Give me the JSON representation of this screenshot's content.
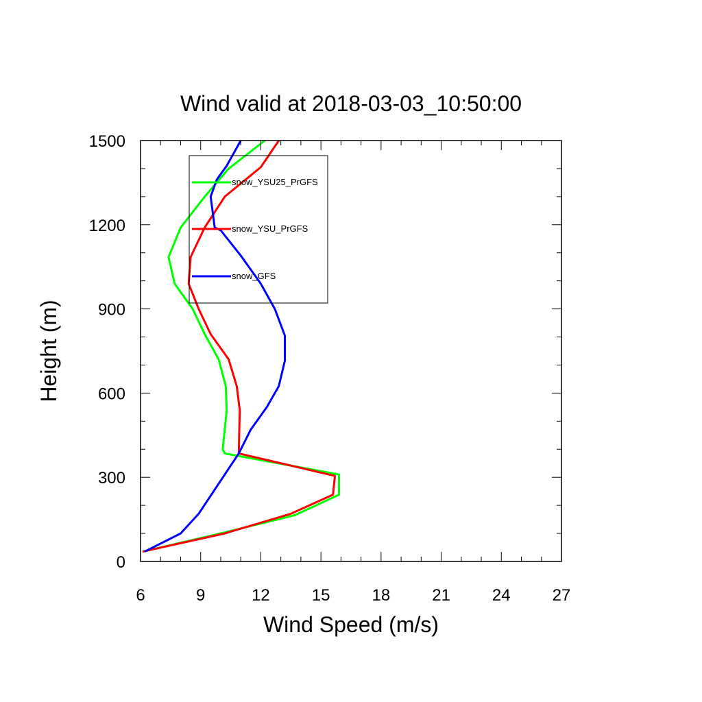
{
  "chart_data": {
    "type": "line",
    "title": "Wind valid at 2018-03-03_10:50:00",
    "xlabel": "Wind Speed (m/s)",
    "ylabel": "Height (m)",
    "xlim": [
      6,
      27
    ],
    "ylim": [
      0,
      1500
    ],
    "xticks": [
      6,
      9,
      12,
      15,
      18,
      21,
      24,
      27
    ],
    "xticks_text": [
      "6",
      "9",
      "12",
      "15",
      "18",
      "21",
      "24",
      "27"
    ],
    "yticks": [
      0,
      300,
      600,
      900,
      1200,
      1500
    ],
    "yticks_text": [
      "0",
      "300",
      "600",
      "900",
      "1200",
      "1500"
    ],
    "grid": false,
    "legend_position": "top-left (inside plot)",
    "series": [
      {
        "name": "snow_YSU25_PrGFS",
        "color": "#00ff00",
        "points": [
          [
            6.1,
            35
          ],
          [
            10.0,
            100
          ],
          [
            13.7,
            165
          ],
          [
            15.9,
            238
          ],
          [
            15.9,
            310
          ],
          [
            10.2,
            385
          ],
          [
            10.1,
            400
          ],
          [
            10.3,
            540
          ],
          [
            10.25,
            625
          ],
          [
            9.9,
            720
          ],
          [
            9.2,
            810
          ],
          [
            8.6,
            900
          ],
          [
            7.7,
            990
          ],
          [
            7.4,
            1085
          ],
          [
            8.0,
            1190
          ],
          [
            9.2,
            1300
          ],
          [
            10.4,
            1400
          ],
          [
            12.2,
            1500
          ]
        ]
      },
      {
        "name": "snow_YSU_PrGFS",
        "color": "#ff0000",
        "points": [
          [
            6.1,
            35
          ],
          [
            10.2,
            100
          ],
          [
            13.5,
            170
          ],
          [
            15.6,
            238
          ],
          [
            15.7,
            305
          ],
          [
            10.9,
            385
          ],
          [
            10.95,
            540
          ],
          [
            10.8,
            625
          ],
          [
            10.4,
            720
          ],
          [
            9.5,
            810
          ],
          [
            8.9,
            900
          ],
          [
            8.4,
            990
          ],
          [
            8.5,
            1085
          ],
          [
            9.2,
            1190
          ],
          [
            10.2,
            1300
          ],
          [
            12.0,
            1405
          ],
          [
            12.9,
            1500
          ]
        ]
      },
      {
        "name": "snow_GFS",
        "color": "#0000ff",
        "points": [
          [
            6.2,
            35
          ],
          [
            8.0,
            100
          ],
          [
            8.9,
            170
          ],
          [
            10.9,
            385
          ],
          [
            11.5,
            470
          ],
          [
            12.3,
            550
          ],
          [
            12.9,
            625
          ],
          [
            13.2,
            715
          ],
          [
            13.2,
            805
          ],
          [
            12.7,
            900
          ],
          [
            12.0,
            990
          ],
          [
            11.0,
            1090
          ],
          [
            10.0,
            1180
          ],
          [
            9.7,
            1190
          ],
          [
            9.5,
            1300
          ],
          [
            9.8,
            1360
          ],
          [
            10.3,
            1410
          ],
          [
            11.0,
            1500
          ]
        ]
      }
    ]
  }
}
